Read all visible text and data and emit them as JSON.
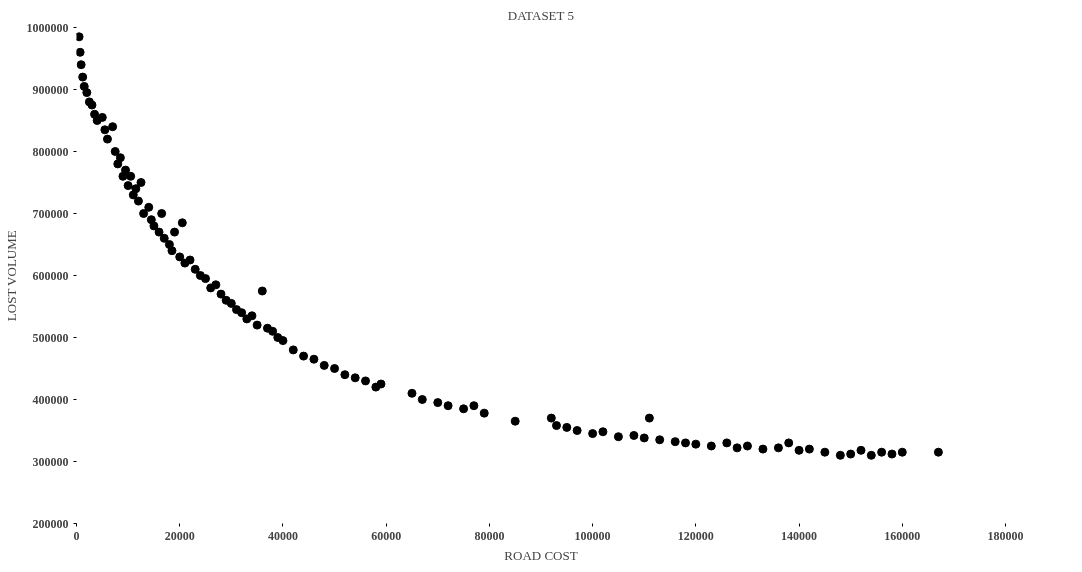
{
  "chart_data": {
    "type": "scatter",
    "title": "DATASET 5",
    "xlabel": "ROAD COST",
    "ylabel": "LOST VOLUME",
    "marker": "circle",
    "grid": false,
    "xlim": [
      0,
      180000
    ],
    "xticks": [
      0,
      20000,
      40000,
      60000,
      80000,
      100000,
      120000,
      140000,
      160000,
      180000
    ],
    "ylim": [
      200000,
      1000000
    ],
    "yticks": [
      200000,
      300000,
      400000,
      500000,
      600000,
      700000,
      800000,
      900000,
      1000000
    ],
    "series": [
      {
        "color": "#000000",
        "x": [
          500,
          700,
          900,
          1200,
          1500,
          2000,
          2500,
          3000,
          3500,
          4000,
          5000,
          5500,
          6000,
          7000,
          7500,
          8000,
          8500,
          9000,
          9500,
          10000,
          10500,
          11000,
          11500,
          12000,
          12500,
          13000,
          14000,
          14500,
          15000,
          16000,
          16500,
          17000,
          18000,
          18500,
          19000,
          20000,
          20500,
          21000,
          22000,
          23000,
          24000,
          25000,
          26000,
          27000,
          28000,
          29000,
          30000,
          31000,
          32000,
          33000,
          34000,
          35000,
          36000,
          37000,
          38000,
          39000,
          40000,
          42000,
          44000,
          46000,
          48000,
          50000,
          52000,
          54000,
          56000,
          58000,
          59000,
          65000,
          67000,
          70000,
          72000,
          75000,
          77000,
          79000,
          85000,
          92000,
          93000,
          95000,
          97000,
          100000,
          102000,
          105000,
          108000,
          110000,
          111000,
          113000,
          116000,
          118000,
          120000,
          123000,
          126000,
          128000,
          130000,
          133000,
          136000,
          138000,
          140000,
          142000,
          145000,
          148000,
          150000,
          152000,
          154000,
          156000,
          158000,
          160000,
          167000
        ],
        "values": [
          985000,
          960000,
          940000,
          920000,
          905000,
          895000,
          880000,
          875000,
          860000,
          850000,
          855000,
          835000,
          820000,
          840000,
          800000,
          780000,
          790000,
          760000,
          770000,
          745000,
          760000,
          730000,
          740000,
          720000,
          750000,
          700000,
          710000,
          690000,
          680000,
          670000,
          700000,
          660000,
          650000,
          640000,
          670000,
          630000,
          685000,
          620000,
          625000,
          610000,
          600000,
          595000,
          580000,
          585000,
          570000,
          560000,
          555000,
          545000,
          540000,
          530000,
          535000,
          520000,
          575000,
          515000,
          510000,
          500000,
          495000,
          480000,
          470000,
          465000,
          455000,
          450000,
          440000,
          435000,
          430000,
          420000,
          425000,
          410000,
          400000,
          395000,
          390000,
          385000,
          390000,
          378000,
          365000,
          370000,
          358000,
          355000,
          350000,
          345000,
          348000,
          340000,
          342000,
          338000,
          370000,
          335000,
          332000,
          330000,
          328000,
          325000,
          330000,
          322000,
          325000,
          320000,
          322000,
          330000,
          318000,
          320000,
          315000,
          310000,
          312000,
          318000,
          310000,
          315000,
          312000,
          315000,
          315000
        ]
      }
    ]
  }
}
